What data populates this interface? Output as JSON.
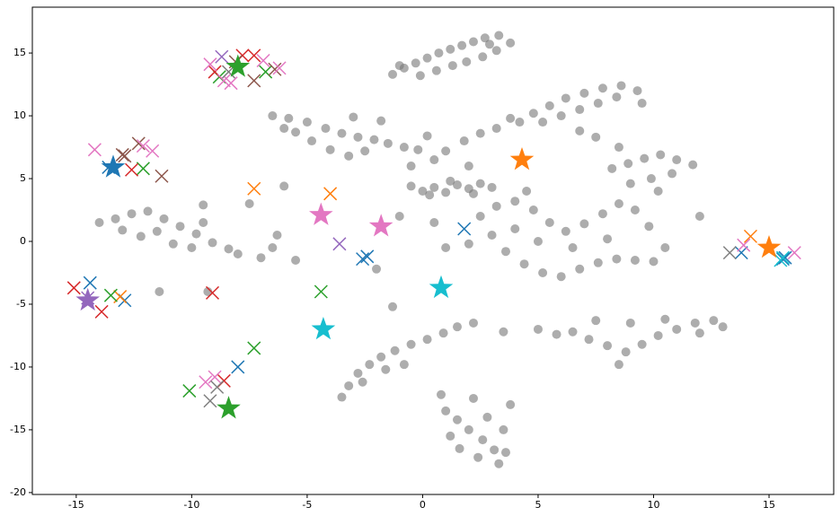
{
  "chart_data": {
    "type": "scatter",
    "xlim": [
      -16.9,
      17.8
    ],
    "ylim": [
      -20.15,
      18.65
    ],
    "xticks": [
      -15,
      -10,
      -5,
      0,
      5,
      10,
      15
    ],
    "yticks": [
      -20,
      -15,
      -10,
      -5,
      0,
      5,
      10,
      15
    ],
    "grid": false,
    "series": [
      {
        "color": "#777777",
        "marker": "o",
        "x": [
          -1.3,
          -0.8,
          -0.3,
          0.2,
          0.7,
          1.2,
          1.7,
          2.2,
          2.7,
          3.3,
          3.8,
          3.2,
          2.6,
          1.9,
          1.3,
          0.6,
          -0.1,
          2.9,
          -1,
          -6.5,
          -5.8,
          -5,
          -4.2,
          -3.5,
          -2.8,
          -2.1,
          -1.5,
          -0.8,
          -0.2,
          -5.5,
          -4.8,
          -4,
          -3.2,
          -2.5,
          -6,
          -1.8,
          -3,
          -0.5,
          0,
          0.5,
          1,
          1.5,
          2,
          2.5,
          3,
          1.2,
          0.3,
          2.2,
          0.5,
          1,
          1.8,
          2.5,
          3.2,
          3.8,
          -0.5,
          0.2,
          4.2,
          4.8,
          5.5,
          6.2,
          7,
          7.8,
          8.6,
          9.3,
          5.2,
          6,
          6.8,
          7.6,
          8.4,
          9.5,
          8.2,
          8.9,
          9.6,
          10.3,
          11,
          11.7,
          10.8,
          9.9,
          9,
          8.5,
          7.5,
          6.8,
          10.2,
          2.5,
          3.2,
          4,
          4.8,
          5.5,
          6.2,
          7,
          7.8,
          8.5,
          9.2,
          9.8,
          3,
          3.6,
          4.4,
          5.2,
          6,
          6.8,
          7.6,
          8.4,
          9.2,
          10,
          10.5,
          5,
          6.5,
          8,
          4,
          2,
          1,
          -14,
          -13.3,
          -12.6,
          -11.9,
          -11.2,
          -10.5,
          -9.8,
          -9.1,
          -8.4,
          -8,
          -13,
          -12.2,
          -11.5,
          -10.8,
          -10,
          -9.5,
          -7,
          -6.5,
          -3.5,
          -3.2,
          -2.8,
          -2.3,
          -1.8,
          -1.2,
          -0.5,
          0.2,
          0.9,
          1.5,
          2.2,
          -2.6,
          -1.6,
          -0.8,
          5,
          5.8,
          6.5,
          7.2,
          8,
          8.8,
          9.5,
          10.2,
          11,
          11.8,
          12.6,
          13,
          7.5,
          9,
          10.5,
          12,
          8.5,
          3.5,
          1,
          1.5,
          2,
          2.6,
          3.1,
          3.3,
          2.4,
          1.6,
          2.8,
          3.5,
          2.2,
          3.8,
          1.2,
          3.6,
          0.8,
          -7.5,
          -6,
          -9.5,
          -5.5,
          -2,
          -1.3,
          -9.3,
          -11.4,
          4.5,
          2,
          -1,
          0.5,
          12,
          -6.3
        ],
        "y": [
          13.3,
          13.8,
          14.2,
          14.6,
          15,
          15.3,
          15.6,
          15.9,
          16.2,
          16.4,
          15.8,
          15.2,
          14.7,
          14.3,
          14,
          13.6,
          13.2,
          15.7,
          14,
          10,
          9.8,
          9.5,
          9,
          8.6,
          8.3,
          8.1,
          7.8,
          7.5,
          7.3,
          8.7,
          8,
          7.3,
          6.8,
          7.2,
          9,
          9.6,
          9.9,
          4.4,
          4,
          4.3,
          3.9,
          4.5,
          4.2,
          4.6,
          4.3,
          4.8,
          3.7,
          3.8,
          6.5,
          7.2,
          8,
          8.6,
          9,
          9.8,
          6,
          8.4,
          9.5,
          10.2,
          10.8,
          11.4,
          11.8,
          12.2,
          12.4,
          12,
          9.5,
          10,
          10.5,
          11,
          11.5,
          11,
          5.8,
          6.2,
          6.6,
          6.9,
          6.5,
          6.1,
          5.4,
          5,
          4.6,
          7.5,
          8.3,
          8.8,
          4,
          2,
          2.8,
          3.2,
          2.5,
          1.5,
          0.8,
          1.4,
          2.2,
          3,
          2.5,
          1.2,
          0.5,
          -0.8,
          -1.8,
          -2.5,
          -2.8,
          -2.2,
          -1.7,
          -1.4,
          -1.5,
          -1.6,
          -0.5,
          0,
          -0.5,
          0.2,
          1,
          -0.2,
          -0.5,
          1.5,
          1.8,
          2.2,
          2.4,
          1.8,
          1.2,
          0.6,
          -0.1,
          -0.6,
          -1,
          0.9,
          0.4,
          0.8,
          -0.2,
          -0.5,
          1.5,
          -1.3,
          -0.5,
          -12.4,
          -11.5,
          -10.5,
          -9.8,
          -9.2,
          -8.7,
          -8.2,
          -7.8,
          -7.3,
          -6.8,
          -6.5,
          -11.2,
          -10.2,
          -9.8,
          -7,
          -7.4,
          -7.2,
          -7.8,
          -8.3,
          -8.8,
          -8.2,
          -7.5,
          -7,
          -6.5,
          -6.3,
          -6.8,
          -6.3,
          -6.5,
          -6.2,
          -7.3,
          -9.8,
          -7.2,
          -13.5,
          -14.2,
          -15,
          -15.8,
          -16.6,
          -17.7,
          -17.2,
          -16.5,
          -14,
          -15,
          -12.5,
          -13,
          -15.5,
          -16.8,
          -12.2,
          3,
          4.4,
          2.9,
          -1.5,
          -2.2,
          -5.2,
          -4,
          -4,
          4,
          6,
          2,
          1.5,
          2,
          0.5
        ]
      },
      {
        "color": "#1f77b4",
        "marker": "x",
        "x": [
          -14.4,
          -12.9,
          -8,
          1.8,
          -2.6,
          -2.4,
          13.8,
          15.6,
          15.7,
          -13.6
        ],
        "y": [
          -3.3,
          -4.7,
          -10,
          1,
          -1.4,
          -1.2,
          -0.9,
          -1.4,
          -1.3,
          5.9
        ]
      },
      {
        "color": "#ff7f0e",
        "marker": "x",
        "x": [
          -7.3,
          -4,
          14.2,
          -13.1
        ],
        "y": [
          4.2,
          3.8,
          0.4,
          -4.4
        ]
      },
      {
        "color": "#2ca02c",
        "marker": "x",
        "x": [
          -13.5,
          -12.1,
          -8.8,
          -6.8,
          -4.4,
          -7.3,
          -10.1
        ],
        "y": [
          -4.3,
          5.8,
          13.1,
          13.5,
          -4,
          -8.5,
          -11.9
        ]
      },
      {
        "color": "#d62728",
        "marker": "x",
        "x": [
          -15.1,
          -13.9,
          -9.1,
          -8.6,
          -9,
          -7.8,
          -7.3,
          -12.6
        ],
        "y": [
          -3.7,
          -5.6,
          -4.1,
          -11.1,
          13.5,
          14.8,
          14.8,
          5.7
        ]
      },
      {
        "color": "#9467bd",
        "marker": "x",
        "x": [
          -8.7,
          -3.6,
          -14.5
        ],
        "y": [
          14.7,
          -0.2,
          -4.5
        ]
      },
      {
        "color": "#8c564b",
        "marker": "x",
        "x": [
          -13,
          -12.3,
          -11.3,
          -7.3,
          -6.4,
          -12.9,
          -8.1
        ],
        "y": [
          6.9,
          7.8,
          5.2,
          12.8,
          13.7,
          6.8,
          14.3
        ]
      },
      {
        "color": "#e377c2",
        "marker": "x",
        "x": [
          -14.2,
          -12.1,
          -11.7,
          -9.2,
          -6.2,
          -6.9,
          -9.4,
          -9,
          16.1,
          13.9,
          -8.6,
          -8.3
        ],
        "y": [
          7.3,
          7.6,
          7.2,
          14.1,
          13.8,
          14.4,
          -11.2,
          -10.8,
          -0.9,
          -0.3,
          12.8,
          12.6
        ]
      },
      {
        "color": "#7f7f7f",
        "marker": "x",
        "x": [
          -9.2,
          -8.9,
          13.3,
          -8.4
        ],
        "y": [
          -12.7,
          -11.6,
          -0.9,
          13.5
        ]
      },
      {
        "color": "#17becf",
        "marker": "x",
        "x": [
          15.5,
          15.6
        ],
        "y": [
          -1.5,
          -1.3
        ]
      },
      {
        "color": "#1f77b4",
        "marker": "*",
        "x": [
          -13.4
        ],
        "y": [
          5.9
        ]
      },
      {
        "color": "#ff7f0e",
        "marker": "*",
        "x": [
          4.3,
          15
        ],
        "y": [
          6.5,
          -0.5
        ]
      },
      {
        "color": "#2ca02c",
        "marker": "*",
        "x": [
          -8,
          -8.4
        ],
        "y": [
          13.9,
          -13.3
        ]
      },
      {
        "color": "#e377c2",
        "marker": "*",
        "x": [
          -4.4,
          -1.8
        ],
        "y": [
          2.1,
          1.2
        ]
      },
      {
        "color": "#17becf",
        "marker": "*",
        "x": [
          0.8,
          -4.3
        ],
        "y": [
          -3.7,
          -7
        ]
      },
      {
        "color": "#9467bd",
        "marker": "*",
        "x": [
          -14.5
        ],
        "y": [
          -4.7
        ]
      }
    ]
  }
}
